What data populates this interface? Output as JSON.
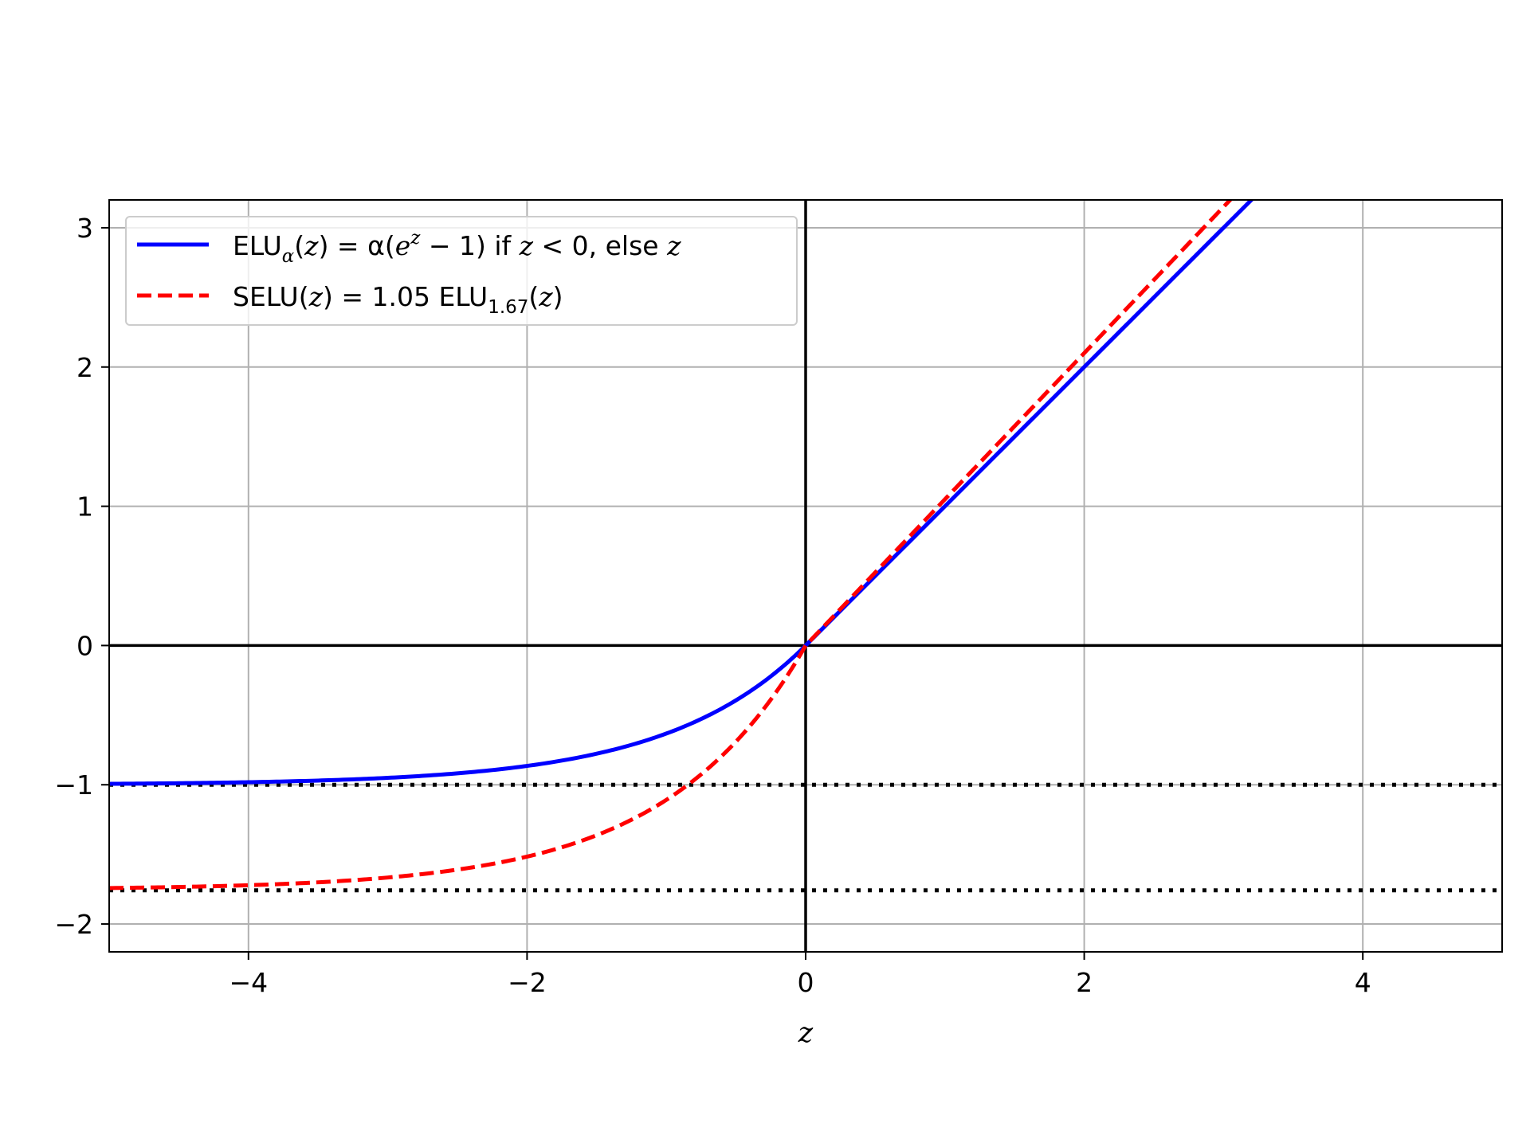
{
  "chart_data": {
    "type": "line",
    "title": "",
    "xlabel": "z",
    "ylabel": "",
    "xlim": [
      -5,
      5
    ],
    "ylim": [
      -2.2,
      3.2
    ],
    "xticks": [
      -4,
      -2,
      0,
      2,
      4
    ],
    "xtick_labels": [
      "−4",
      "−2",
      "0",
      "2",
      "4"
    ],
    "yticks": [
      -2,
      -1,
      0,
      1,
      2,
      3
    ],
    "ytick_labels": [
      "−2",
      "−1",
      "0",
      "1",
      "2",
      "3"
    ],
    "grid": true,
    "legend_position": "top-left",
    "series": [
      {
        "name": "ELU_α(z) = α(e^z − 1) if z < 0, else z",
        "style": "solid",
        "color": "#0000ff",
        "function": "elu",
        "alpha": 1.0,
        "scale": 1.0,
        "x": [
          -5,
          -4,
          -3,
          -2,
          -1.5,
          -1,
          -0.5,
          0,
          1,
          2,
          3,
          3.2
        ],
        "y": [
          -0.99,
          -0.98,
          -0.95,
          -0.86,
          -0.78,
          -0.63,
          -0.39,
          0,
          1,
          2,
          3,
          3.2
        ]
      },
      {
        "name": "SELU(z) = 1.05 ELU_1.67(z)",
        "style": "dashed",
        "color": "#ff0000",
        "function": "elu",
        "alpha": 1.67,
        "scale": 1.05,
        "x": [
          -5,
          -4,
          -3,
          -2,
          -1.5,
          -1,
          -0.5,
          0,
          1,
          2,
          3,
          3.05
        ],
        "y": [
          -1.74,
          -1.72,
          -1.67,
          -1.52,
          -1.37,
          -1.11,
          -0.69,
          0,
          1.05,
          2.1,
          3.15,
          3.2
        ]
      }
    ],
    "reference_lines": [
      {
        "orientation": "horizontal",
        "y": 0,
        "style": "solid",
        "color": "#000000"
      },
      {
        "orientation": "vertical",
        "x": 0,
        "style": "solid",
        "color": "#000000"
      },
      {
        "orientation": "horizontal",
        "y": -1,
        "style": "dotted",
        "color": "#000000"
      },
      {
        "orientation": "horizontal",
        "y": -1.7581,
        "style": "dotted",
        "color": "#000000"
      }
    ],
    "legend": {
      "elu": {
        "pre": "ELU",
        "sub": "α",
        "post_parts": [
          "(",
          "z",
          ") = α(",
          "e",
          "z",
          " − 1) if ",
          "z",
          " < 0, else ",
          "z"
        ]
      },
      "selu": {
        "pre": "SELU(",
        "z1": "z",
        "mid": ") = 1.05 ELU",
        "sub": "1.67",
        "post_open": "(",
        "z2": "z",
        "post_close": ")"
      }
    }
  }
}
